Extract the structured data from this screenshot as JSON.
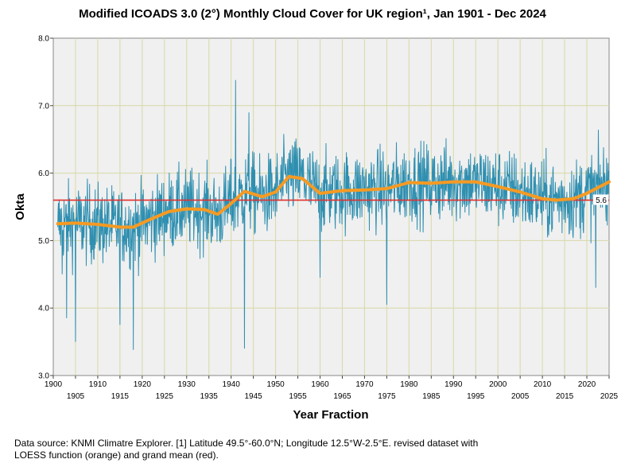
{
  "title": "Modified ICOADS 3.0 (2°) Monthly Cloud Cover for UK region¹, Jan 1901 - Dec 2024",
  "source_note": "Data source: KNMI Climatre Explorer. [1] Latitude 49.5°-60.0°N; Longitude 12.5°W-2.5°E.  revised dataset with LOESS function (orange) and grand mean (red).",
  "colors": {
    "raw": "#2f8fb0",
    "loess": "#f59a23",
    "mean": "#e03030",
    "plot_bg": "#f0f0f0",
    "grid": "#d8d8a8"
  },
  "chart_data": {
    "type": "line",
    "xlabel": "Year Fraction",
    "ylabel": "Okta",
    "xlim": [
      1900,
      2025
    ],
    "ylim": [
      3.0,
      8.0
    ],
    "y_ticks": [
      "3.0",
      "4.0",
      "5.0",
      "6.0",
      "7.0",
      "8.0"
    ],
    "x_ticks_top": [
      "1900",
      "1910",
      "1920",
      "1930",
      "1940",
      "1950",
      "1960",
      "1970",
      "1980",
      "1990",
      "2000",
      "2010",
      "2020"
    ],
    "x_ticks_bottom": [
      "1905",
      "1915",
      "1925",
      "1935",
      "1945",
      "1955",
      "1965",
      "1975",
      "1985",
      "1995",
      "2005",
      "2015",
      "2025"
    ],
    "grand_mean": 5.6,
    "grand_mean_label": "5.6",
    "loess": {
      "x": [
        1901,
        1905,
        1910,
        1915,
        1918,
        1922,
        1926,
        1930,
        1934,
        1937,
        1940,
        1943,
        1947,
        1950,
        1953,
        1956,
        1960,
        1965,
        1970,
        1975,
        1980,
        1985,
        1990,
        1995,
        2000,
        2005,
        2010,
        2013,
        2017,
        2020,
        2025
      ],
      "y": [
        5.25,
        5.26,
        5.24,
        5.2,
        5.2,
        5.32,
        5.43,
        5.47,
        5.46,
        5.39,
        5.55,
        5.73,
        5.65,
        5.72,
        5.95,
        5.92,
        5.7,
        5.74,
        5.75,
        5.77,
        5.86,
        5.85,
        5.87,
        5.87,
        5.8,
        5.72,
        5.62,
        5.6,
        5.62,
        5.7,
        5.87
      ]
    },
    "monthly_anchor": {
      "x": [
        1901,
        1902,
        1903,
        1904,
        1905,
        1908,
        1912,
        1915,
        1916,
        1918,
        1920,
        1925,
        1930,
        1935,
        1940,
        1941,
        1942,
        1943,
        1944,
        1946,
        1950,
        1953,
        1955,
        1958,
        1960,
        1965,
        1970,
        1975,
        1980,
        1985,
        1990,
        1995,
        2000,
        2005,
        2010,
        2015,
        2020,
        2022,
        2024
      ],
      "y": [
        5.2,
        4.5,
        3.85,
        5.4,
        3.5,
        5.2,
        5.1,
        3.75,
        5.3,
        3.38,
        5.2,
        5.4,
        5.5,
        5.4,
        6.2,
        7.38,
        5.8,
        3.4,
        6.9,
        5.6,
        5.7,
        6.3,
        6.0,
        5.6,
        4.45,
        5.7,
        5.8,
        4.05,
        5.9,
        5.8,
        5.95,
        6.0,
        5.85,
        5.6,
        5.7,
        5.5,
        5.7,
        4.3,
        6.0
      ]
    }
  }
}
